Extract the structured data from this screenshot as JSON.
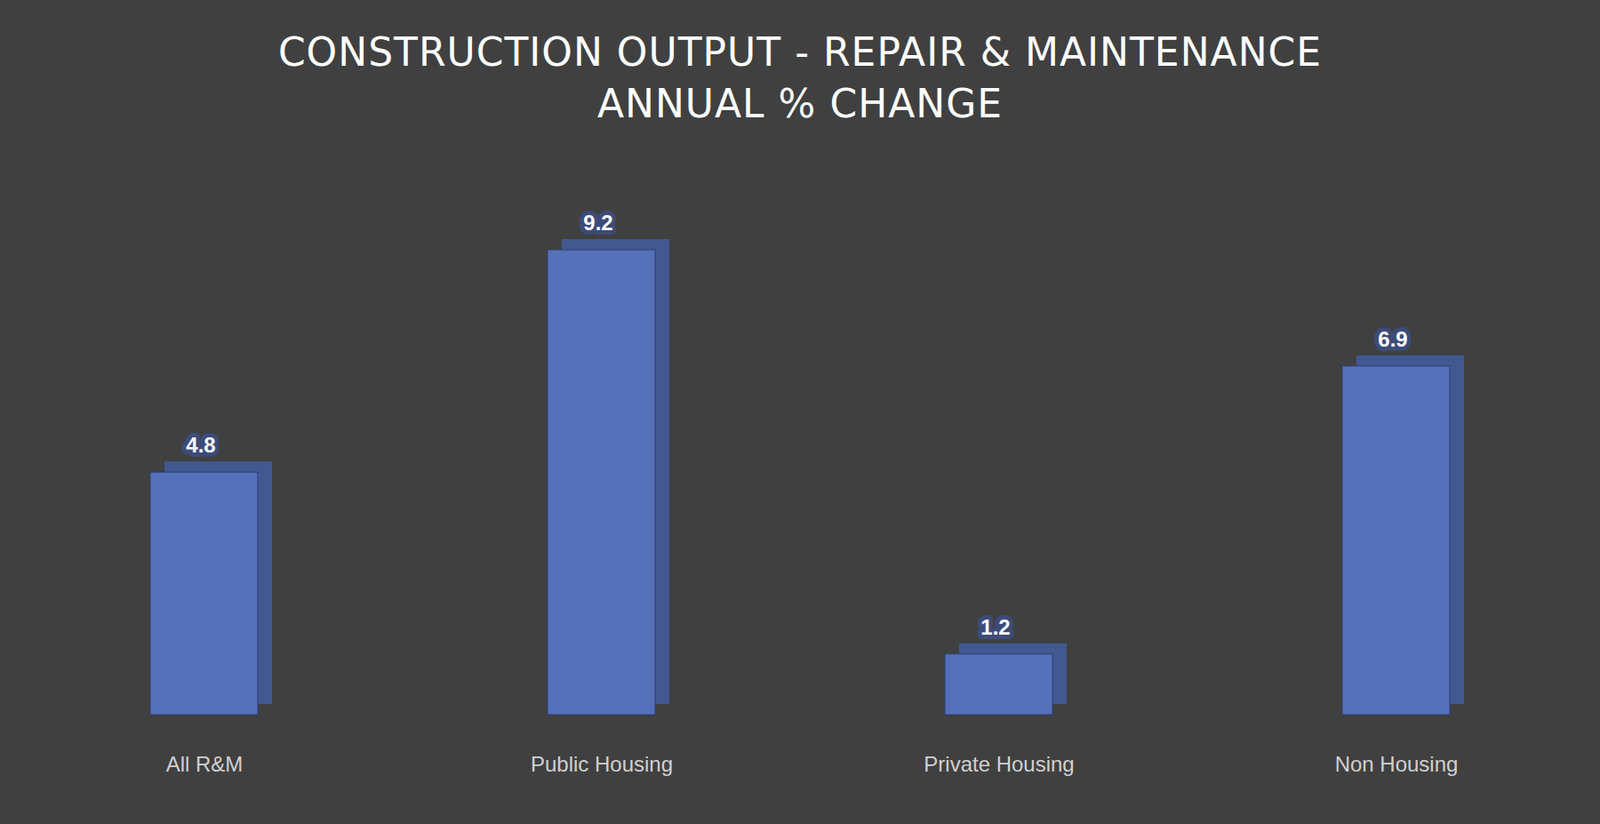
{
  "chart_data": {
    "type": "bar",
    "title": "CONSTRUCTION OUTPUT - REPAIR & MAINTENANCE",
    "subtitle": "ANNUAL % CHANGE",
    "categories": [
      "All R&M",
      "Public Housing",
      "Private Housing",
      "Non Housing"
    ],
    "values": [
      4.8,
      9.2,
      1.2,
      6.9
    ],
    "color": "#5571b9",
    "data_labels": true,
    "tick_labels": "x"
  }
}
